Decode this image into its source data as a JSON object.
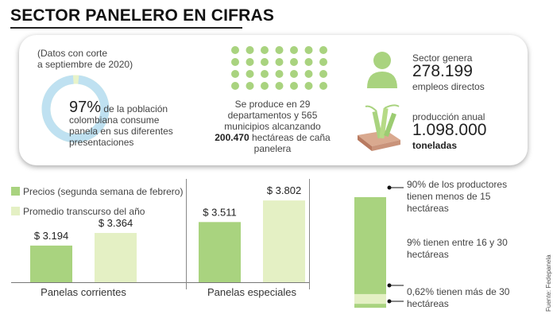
{
  "title": "SECTOR PANELERO EN CIFRAS",
  "summary": {
    "note_line1": "(Datos con corte",
    "note_line2": "a septiembre de 2020)",
    "consumption_pct": "97%",
    "consumption_pct_value": 97,
    "consumption_text": "de la población colombiana consume panela en sus diferentes presentaciones",
    "production_text": "Se produce en 29 departamentos y 565 municipios alcanzando",
    "production_hectares": "200.470",
    "production_tail": "hectáreas de caña panelera",
    "employment_label": "Sector genera",
    "employment_value": "278.199",
    "employment_sub": "empleos directos",
    "annual_label": "producción anual",
    "annual_value": "1.098.000",
    "annual_sub": "toneladas"
  },
  "colors": {
    "dark_green": "#a9d37f",
    "light_green": "#e4f0c4",
    "donut_blue": "#bfe1f1",
    "donut_accent": "#e8f3c9",
    "person": "#a9d37f",
    "crate": "#c9937a"
  },
  "legend": {
    "series1": "Precios (segunda semana  de febrero)",
    "series2": "Promedio transcurso del año"
  },
  "chart_data": [
    {
      "type": "bar",
      "categories": [
        "Panelas corrientes",
        "Panelas especiales"
      ],
      "series": [
        {
          "name": "Precios (segunda semana  de febrero)",
          "values": [
            3194,
            3511
          ],
          "labels": [
            "$ 3.194",
            "$ 3.511"
          ]
        },
        {
          "name": "Promedio transcurso del año",
          "values": [
            3364,
            3802
          ],
          "labels": [
            "$ 3.364",
            "$ 3.802"
          ]
        }
      ],
      "ylim": [
        2700,
        3900
      ]
    },
    {
      "type": "bar",
      "stacked": true,
      "values": [
        90,
        9,
        0.62
      ],
      "labels": [
        "90% de los productores tienen menos de 15 hectáreas",
        "9% tienen entre 16 y 30 hectáreas",
        "0,62% tienen más de 30 hectáreas"
      ]
    }
  ],
  "source": "Fuente: Fedepanela"
}
